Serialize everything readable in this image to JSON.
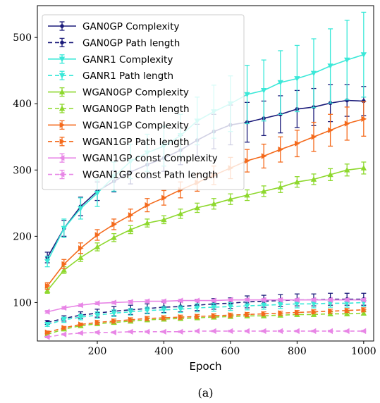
{
  "chart_data": {
    "type": "line",
    "xlabel": "Epoch",
    "ylabel": "",
    "xlim": [
      20,
      1030
    ],
    "ylim": [
      42,
      548
    ],
    "xticks": [
      200,
      400,
      600,
      800,
      1000
    ],
    "yticks": [
      100,
      200,
      300,
      400,
      500
    ],
    "caption": "(a)",
    "legend_position": "upper-left",
    "x": [
      50,
      100,
      150,
      200,
      250,
      300,
      350,
      400,
      450,
      500,
      550,
      600,
      650,
      700,
      750,
      800,
      850,
      900,
      950,
      1000
    ],
    "series": [
      {
        "name": "GAN0GP Complexity",
        "color": "#1b1b7a",
        "dashed": false,
        "marker": "circle",
        "values": [
          168,
          212,
          245,
          268,
          283,
          297,
          308,
          318,
          330,
          345,
          358,
          368,
          372,
          378,
          384,
          392,
          395,
          401,
          405,
          404
        ],
        "errors": [
          8,
          12,
          14,
          14,
          16,
          18,
          20,
          20,
          22,
          24,
          26,
          30,
          30,
          26,
          28,
          28,
          28,
          28,
          24,
          22
        ]
      },
      {
        "name": "GAN0GP Path length",
        "color": "#1b1b7a",
        "dashed": true,
        "marker": "circle",
        "values": [
          70,
          76,
          81,
          84,
          87,
          89,
          91,
          93,
          94,
          96,
          98,
          99,
          101,
          102,
          103,
          104,
          104,
          105,
          105,
          105
        ],
        "errors": [
          3,
          4,
          5,
          6,
          7,
          7,
          7,
          8,
          8,
          8,
          8,
          8,
          9,
          9,
          9,
          9,
          9,
          9,
          9,
          9
        ]
      },
      {
        "name": "GANR1 Complexity",
        "color": "#3ae8d8",
        "dashed": false,
        "marker": "triangle-down",
        "values": [
          162,
          212,
          242,
          265,
          290,
          313,
          326,
          336,
          352,
          374,
          388,
          400,
          414,
          420,
          432,
          438,
          446,
          457,
          466,
          474
        ],
        "errors": [
          8,
          14,
          16,
          20,
          22,
          26,
          28,
          30,
          32,
          36,
          40,
          42,
          44,
          46,
          48,
          50,
          52,
          56,
          60,
          64
        ]
      },
      {
        "name": "GANR1 Path length",
        "color": "#3ae8d8",
        "dashed": true,
        "marker": "triangle-down",
        "values": [
          67,
          74,
          78,
          81,
          84,
          86,
          88,
          89,
          90,
          92,
          93,
          94,
          95,
          96,
          97,
          98,
          98,
          99,
          99,
          100
        ],
        "errors": [
          3,
          4,
          4,
          5,
          5,
          5,
          5,
          5,
          5,
          6,
          6,
          6,
          6,
          6,
          6,
          6,
          6,
          6,
          6,
          6
        ]
      },
      {
        "name": "WGAN0GP Complexity",
        "color": "#8ed82e",
        "dashed": false,
        "marker": "triangle-up",
        "values": [
          118,
          149,
          168,
          184,
          198,
          210,
          220,
          225,
          234,
          243,
          249,
          256,
          262,
          268,
          274,
          282,
          286,
          293,
          300,
          303
        ],
        "errors": [
          4,
          5,
          6,
          6,
          6,
          6,
          6,
          6,
          7,
          7,
          8,
          8,
          8,
          8,
          8,
          8,
          8,
          9,
          9,
          9
        ]
      },
      {
        "name": "WGAN0GP Path length",
        "color": "#8ed82e",
        "dashed": true,
        "marker": "triangle-up",
        "values": [
          52,
          60,
          65,
          68,
          70,
          72,
          74,
          75,
          76,
          77,
          78,
          79,
          80,
          80,
          81,
          82,
          82,
          83,
          83,
          84
        ],
        "errors": [
          2,
          2,
          2,
          2,
          3,
          3,
          3,
          3,
          3,
          3,
          3,
          3,
          3,
          3,
          3,
          3,
          3,
          3,
          3,
          3
        ]
      },
      {
        "name": "WGAN1GP Complexity",
        "color": "#f46a1c",
        "dashed": false,
        "marker": "triangle-right",
        "values": [
          125,
          158,
          182,
          202,
          218,
          232,
          247,
          258,
          270,
          281,
          292,
          303,
          314,
          321,
          331,
          340,
          350,
          360,
          370,
          377
        ],
        "errors": [
          5,
          7,
          8,
          8,
          8,
          9,
          10,
          11,
          12,
          13,
          14,
          16,
          17,
          18,
          19,
          20,
          22,
          24,
          25,
          26
        ]
      },
      {
        "name": "WGAN1GP Path length",
        "color": "#f46a1c",
        "dashed": true,
        "marker": "triangle-right",
        "values": [
          55,
          62,
          67,
          70,
          72,
          74,
          76,
          77,
          78,
          79,
          80,
          81,
          82,
          83,
          84,
          85,
          86,
          87,
          88,
          89
        ],
        "errors": [
          2,
          2,
          2,
          3,
          3,
          3,
          3,
          3,
          3,
          3,
          3,
          3,
          3,
          3,
          3,
          3,
          3,
          3,
          3,
          3
        ]
      },
      {
        "name": "WGAN1GP const Complexity",
        "color": "#e886e6",
        "dashed": false,
        "marker": "triangle-left",
        "values": [
          86,
          92,
          96,
          99,
          100,
          101,
          102,
          102,
          103,
          103,
          103,
          104,
          104,
          104,
          104,
          104,
          104,
          104,
          104,
          104
        ],
        "errors": [
          2,
          2,
          2,
          2,
          2,
          2,
          2,
          2,
          2,
          2,
          2,
          2,
          2,
          2,
          2,
          2,
          2,
          2,
          2,
          2
        ]
      },
      {
        "name": "WGAN1GP const Path length",
        "color": "#e886e6",
        "dashed": true,
        "marker": "triangle-left",
        "values": [
          48,
          52,
          54,
          55,
          55,
          56,
          56,
          56,
          56,
          57,
          57,
          57,
          57,
          57,
          57,
          57,
          57,
          57,
          57,
          57
        ],
        "errors": [
          1,
          1,
          1,
          1,
          1,
          1,
          1,
          1,
          1,
          1,
          1,
          1,
          1,
          1,
          1,
          1,
          1,
          1,
          1,
          1
        ]
      }
    ]
  }
}
